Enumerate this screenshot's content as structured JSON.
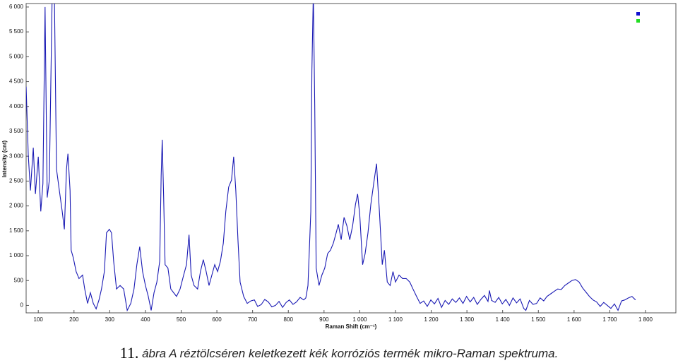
{
  "chart_data": {
    "type": "line",
    "y_label": "Intensity (cnt)",
    "x_label": "Raman Shift (cm⁻¹)",
    "xlim": [
      66,
      1885
    ],
    "ylim": [
      -150,
      6070
    ],
    "xticks": [
      100,
      200,
      300,
      400,
      500,
      600,
      700,
      800,
      900,
      {
        "value": 1000,
        "label": "1 000"
      },
      {
        "value": 1100,
        "label": "1 100"
      },
      {
        "value": 1200,
        "label": "1 200"
      },
      {
        "value": 1300,
        "label": "1 300"
      },
      {
        "value": 1400,
        "label": "1 400"
      },
      {
        "value": 1500,
        "label": "1 500"
      },
      {
        "value": 1600,
        "label": "1 600"
      },
      {
        "value": 1700,
        "label": "1 700"
      },
      {
        "value": 1800,
        "label": "1 800"
      }
    ],
    "yticks": [
      0,
      500,
      {
        "value": 1000,
        "label": "1 000"
      },
      {
        "value": 1500,
        "label": "1 500"
      },
      {
        "value": 2000,
        "label": "2 000"
      },
      {
        "value": 2500,
        "label": "2 500"
      },
      {
        "value": 3000,
        "label": "3 000"
      },
      {
        "value": 3500,
        "label": "3 500"
      },
      {
        "value": 4000,
        "label": "4 000"
      },
      {
        "value": 4500,
        "label": "4 500"
      },
      {
        "value": 5000,
        "label": "5 000"
      },
      {
        "value": 5500,
        "label": "5 500"
      },
      {
        "value": 6000,
        "label": "6 000"
      }
    ],
    "legend_markers": [
      "#1010d0",
      "#22dd22"
    ],
    "x": [
      66,
      72,
      78,
      86,
      92,
      100,
      107,
      113,
      119,
      125,
      131,
      139,
      145,
      151,
      159,
      167,
      173,
      179,
      183,
      189,
      192,
      198,
      206,
      214,
      224,
      230,
      238,
      246,
      254,
      262,
      270,
      277,
      285,
      291,
      299,
      305,
      311,
      319,
      329,
      339,
      349,
      359,
      368,
      376,
      384,
      392,
      400,
      408,
      416,
      424,
      432,
      440,
      444,
      447,
      451,
      455,
      463,
      471,
      479,
      487,
      497,
      507,
      515,
      522,
      528,
      536,
      546,
      554,
      562,
      570,
      578,
      586,
      594,
      602,
      610,
      618,
      625,
      633,
      641,
      647,
      653,
      659,
      665,
      675,
      685,
      695,
      705,
      714,
      724,
      734,
      744,
      754,
      764,
      774,
      784,
      794,
      803,
      813,
      823,
      833,
      843,
      849,
      855,
      863,
      866,
      870,
      874,
      878,
      886,
      894,
      902,
      910,
      918,
      926,
      934,
      940,
      948,
      956,
      964,
      972,
      980,
      988,
      994,
      1000,
      1008,
      1015,
      1023,
      1031,
      1039,
      1047,
      1055,
      1063,
      1069,
      1077,
      1085,
      1093,
      1100,
      1110,
      1120,
      1130,
      1140,
      1149,
      1159,
      1169,
      1179,
      1189,
      1199,
      1209,
      1219,
      1229,
      1239,
      1249,
      1259,
      1269,
      1279,
      1289,
      1299,
      1309,
      1319,
      1329,
      1339,
      1349,
      1359,
      1363,
      1369,
      1379,
      1389,
      1399,
      1409,
      1419,
      1429,
      1439,
      1449,
      1459,
      1465,
      1475,
      1485,
      1495,
      1505,
      1515,
      1524,
      1534,
      1544,
      1554,
      1564,
      1574,
      1584,
      1594,
      1604,
      1614,
      1624,
      1634,
      1643,
      1653,
      1663,
      1673,
      1683,
      1693,
      1703,
      1713,
      1723,
      1733,
      1742,
      1752,
      1762,
      1772
    ],
    "series": [
      {
        "color": "#1a1ab4",
        "values": [
          4400,
          3020,
          2310,
          3170,
          2240,
          2990,
          1890,
          2450,
          6000,
          2170,
          2520,
          6300,
          6300,
          2740,
          2310,
          1890,
          1530,
          2740,
          3050,
          2310,
          1110,
          960,
          680,
          540,
          610,
          330,
          40,
          255,
          40,
          -70,
          110,
          330,
          680,
          1460,
          1530,
          1460,
          890,
          330,
          400,
          330,
          -100,
          40,
          330,
          820,
          1180,
          680,
          400,
          180,
          -100,
          255,
          470,
          890,
          2600,
          3330,
          2170,
          820,
          750,
          330,
          255,
          180,
          330,
          610,
          820,
          1420,
          610,
          400,
          330,
          680,
          920,
          680,
          400,
          610,
          820,
          680,
          890,
          1250,
          1890,
          2380,
          2520,
          2990,
          2310,
          1320,
          470,
          180,
          40,
          90,
          110,
          -20,
          15,
          120,
          70,
          -30,
          0,
          80,
          -40,
          60,
          110,
          20,
          70,
          160,
          110,
          150,
          400,
          1890,
          4720,
          6300,
          4010,
          750,
          400,
          610,
          750,
          1040,
          1110,
          1250,
          1460,
          1630,
          1320,
          1770,
          1600,
          1320,
          1600,
          2030,
          2240,
          1820,
          820,
          1040,
          1460,
          2030,
          2450,
          2850,
          1890,
          820,
          1110,
          470,
          400,
          680,
          470,
          610,
          540,
          540,
          470,
          330,
          180,
          40,
          90,
          -20,
          110,
          30,
          140,
          -40,
          100,
          20,
          130,
          60,
          150,
          40,
          180,
          70,
          160,
          20,
          120,
          200,
          80,
          300,
          100,
          60,
          160,
          30,
          120,
          0,
          150,
          50,
          130,
          -60,
          -100,
          100,
          20,
          40,
          150,
          90,
          180,
          230,
          280,
          330,
          320,
          400,
          450,
          500,
          520,
          470,
          350,
          260,
          180,
          110,
          70,
          -20,
          60,
          0,
          -60,
          30,
          -100,
          90,
          110,
          150,
          180,
          110
        ]
      }
    ]
  },
  "caption": {
    "number": "11.",
    "text": " ábra A réztölcséren keletkezett kék korróziós termék mikro-Raman spektruma."
  }
}
